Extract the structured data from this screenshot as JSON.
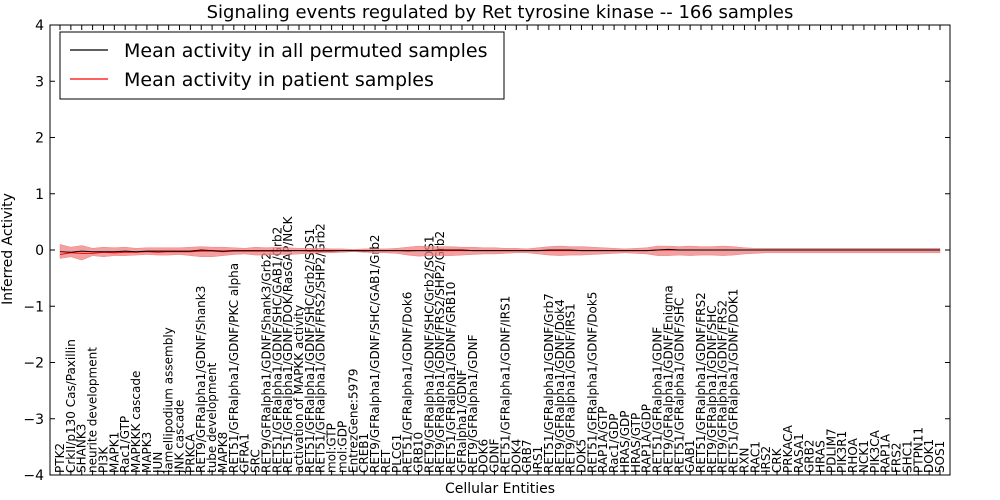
{
  "chart_data": {
    "type": "line",
    "title": "Signaling events regulated by Ret tyrosine kinase -- 166 samples",
    "xlabel": "Cellular Entities",
    "ylabel": "Inferred Activity",
    "ylim": [
      -4,
      4
    ],
    "yticks": [
      -4,
      -3,
      -2,
      -1,
      0,
      1,
      2,
      3,
      4
    ],
    "ytick_labels": [
      "−4",
      "−3",
      "−2",
      "−1",
      "0",
      "1",
      "2",
      "3",
      "4"
    ],
    "legend": {
      "position": "top-left",
      "entries": [
        {
          "label": "Mean activity in all permuted samples",
          "color": "#000000"
        },
        {
          "label": "Mean activity in patient samples",
          "color": "#ff0000"
        }
      ]
    },
    "categories": [
      "PTK2",
      "CrkII/p130 Cas/Paxillin",
      "SHANK3",
      "neurite development",
      "PI3K",
      "MAPK1",
      "Rac1/GTP",
      "MAPKKK cascade",
      "MAPK3",
      "JUN",
      "lamellipodium assembly",
      "JNK cascade",
      "PRKCA",
      "RET9/GFRalpha1/GDNF/Shank3",
      "tube development",
      "MAPK8",
      "RET51/GFRalpha1/GDNF/PKC alpha",
      "GFRA1",
      "SRC",
      "RET9/GFRalpha1/GDNF/Shank3/Grb2",
      "RET51/GFRalpha1/GDNF/SHC/GAB1/Grb2",
      "RET51/GFRalpha1/GDNF/DOK/RasGAP/NCK",
      "activation of MAPKK activity",
      "RET51/GFRalpha1/GDNF/SHC/Grb2/SOS1",
      "RET51/GFRalpha1/GDNF/FRS2/SHP2/Grb2",
      "mol:GTP",
      "mol:GDP",
      "EntrezGene:5979",
      "CREB1",
      "RET9/GFRalpha1/GDNF/SHC/GAB1/Grb2",
      "RET",
      "PLCG1",
      "RET51/GFRalpha1/GDNF/Dok6",
      "GRB10",
      "RET9/GFRalpha1/GDNF/SHC/Grb2/SOS1",
      "RET9/GFRalpha1/GDNF/FRS2/SHP2/Grb2",
      "RET51/GFRalpha1/GDNF/GRB10",
      "GFRalpha1/GDNF",
      "RET9/GFRalpha1/GDNF",
      "DOK6",
      "GDNF",
      "RET51/GFRalpha1/GDNF/IRS1",
      "DOK4",
      "GRB7",
      "IRS1",
      "RET51/GFRalpha1/GDNF/Grb7",
      "RET9/GFRalpha1/GDNF/Dok4",
      "RET9/GFRalpha1/GDNF/IRS1",
      "DOK5",
      "RET51/GFRalpha1/GDNF/Dok5",
      "RAP1A/GTP",
      "Rac1/GDP",
      "HRAS/GDP",
      "HRAS/GTP",
      "RAP1A/GDP",
      "RET51/GFRalpha1/GDNF",
      "RET9/GFRalpha1/GDNF/Enigma",
      "RET51/GFRalpha1/GDNF/SHC",
      "GAB1",
      "RET51/GFRalpha1/GDNF/FRS2",
      "RET9/GFRalpha1/GDNF/SHC",
      "RET9/GFRalpha1/GDNF/FRS2",
      "RET51/GFRalpha1/GDNF/DOK1",
      "RXN",
      "RAC1",
      "IRS2",
      "CRK",
      "PRKACA",
      "RASA1",
      "GRB2",
      "HRAS",
      "PDLIM7",
      "PIK3R1",
      "RHOA",
      "NCK1",
      "PIK3CA",
      "RAP1A",
      "FRS2",
      "SHC1",
      "PTPN11",
      "DOK1",
      "SOS1"
    ],
    "series": [
      {
        "name": "Mean activity in all permuted samples",
        "color": "#000000",
        "values": [
          -0.03,
          -0.04,
          -0.02,
          -0.03,
          -0.03,
          -0.03,
          -0.02,
          -0.03,
          -0.02,
          -0.02,
          -0.02,
          -0.02,
          -0.02,
          0.0,
          -0.01,
          -0.02,
          -0.01,
          -0.01,
          -0.01,
          -0.01,
          -0.01,
          -0.01,
          -0.01,
          -0.01,
          -0.01,
          -0.01,
          -0.01,
          -0.01,
          -0.01,
          -0.01,
          -0.01,
          -0.01,
          -0.01,
          -0.01,
          -0.01,
          0.0,
          0.0,
          0.0,
          -0.01,
          -0.01,
          -0.01,
          -0.01,
          -0.01,
          -0.01,
          -0.01,
          0.0,
          0.0,
          0.0,
          -0.01,
          -0.01,
          -0.01,
          -0.01,
          -0.01,
          -0.01,
          -0.01,
          0.0,
          0.01,
          0.0,
          0.0,
          0.0,
          0.0,
          0.0,
          0.0,
          0.0,
          0.0,
          0.0,
          0.0,
          0.0,
          0.0,
          0.0,
          0.0,
          0.0,
          0.0,
          0.0,
          0.0,
          0.0,
          0.0,
          0.0,
          0.0,
          0.0,
          0.0,
          0.0
        ]
      },
      {
        "name": "Mean activity in patient samples",
        "color": "#ff0000",
        "values": [
          -0.08,
          -0.05,
          -0.06,
          -0.06,
          -0.04,
          -0.05,
          -0.04,
          -0.04,
          -0.03,
          -0.04,
          -0.03,
          -0.03,
          -0.03,
          -0.02,
          -0.02,
          -0.03,
          -0.02,
          -0.02,
          -0.02,
          -0.02,
          -0.02,
          -0.01,
          -0.01,
          -0.02,
          -0.02,
          -0.02,
          -0.01,
          -0.01,
          -0.02,
          -0.01,
          -0.01,
          -0.01,
          -0.02,
          -0.01,
          -0.01,
          -0.01,
          -0.01,
          -0.01,
          -0.01,
          -0.01,
          -0.01,
          -0.01,
          -0.01,
          -0.01,
          -0.01,
          -0.01,
          -0.01,
          -0.01,
          -0.01,
          -0.01,
          -0.01,
          -0.01,
          -0.01,
          -0.01,
          -0.01,
          0.0,
          0.0,
          0.0,
          0.0,
          0.0,
          0.0,
          0.0,
          0.0,
          0.0,
          0.0,
          0.0,
          0.0,
          0.0,
          0.0,
          0.0,
          0.0,
          0.0,
          0.0,
          0.0,
          0.0,
          0.0,
          0.0,
          0.0,
          0.0,
          0.0,
          0.0,
          0.0
        ],
        "band_upper": [
          0.1,
          0.05,
          0.08,
          0.03,
          0.05,
          0.04,
          0.05,
          0.03,
          0.04,
          0.04,
          0.04,
          0.04,
          0.05,
          0.06,
          0.05,
          0.05,
          0.04,
          0.03,
          0.05,
          0.04,
          0.05,
          0.04,
          0.03,
          0.03,
          0.03,
          0.02,
          0.02,
          0.01,
          0.02,
          0.02,
          0.02,
          0.03,
          0.05,
          0.07,
          0.06,
          0.06,
          0.06,
          0.05,
          0.05,
          0.04,
          0.04,
          0.03,
          0.03,
          0.02,
          0.04,
          0.06,
          0.07,
          0.06,
          0.06,
          0.05,
          0.04,
          0.03,
          0.02,
          0.03,
          0.04,
          0.07,
          0.07,
          0.06,
          0.07,
          0.06,
          0.06,
          0.07,
          0.06,
          0.04,
          0.03,
          0.03,
          0.03,
          0.03,
          0.03,
          0.03,
          0.03,
          0.03,
          0.03,
          0.03,
          0.03,
          0.03,
          0.03,
          0.03,
          0.03,
          0.03,
          0.03,
          0.03
        ],
        "band_lower": [
          -0.15,
          -0.12,
          -0.18,
          -0.1,
          -0.12,
          -0.1,
          -0.1,
          -0.09,
          -0.08,
          -0.09,
          -0.09,
          -0.08,
          -0.1,
          -0.12,
          -0.12,
          -0.1,
          -0.08,
          -0.07,
          -0.09,
          -0.09,
          -0.08,
          -0.08,
          -0.07,
          -0.06,
          -0.05,
          -0.05,
          -0.04,
          -0.03,
          -0.04,
          -0.05,
          -0.05,
          -0.06,
          -0.09,
          -0.11,
          -0.1,
          -0.1,
          -0.1,
          -0.09,
          -0.08,
          -0.07,
          -0.07,
          -0.06,
          -0.05,
          -0.05,
          -0.07,
          -0.09,
          -0.1,
          -0.09,
          -0.09,
          -0.08,
          -0.07,
          -0.06,
          -0.05,
          -0.06,
          -0.07,
          -0.1,
          -0.1,
          -0.09,
          -0.1,
          -0.09,
          -0.09,
          -0.1,
          -0.09,
          -0.07,
          -0.06,
          -0.05,
          -0.05,
          -0.05,
          -0.05,
          -0.05,
          -0.05,
          -0.05,
          -0.05,
          -0.05,
          -0.05,
          -0.05,
          -0.05,
          -0.05,
          -0.05,
          -0.05,
          -0.05,
          -0.05
        ]
      }
    ],
    "band_color": "#f08080",
    "grid": false
  }
}
